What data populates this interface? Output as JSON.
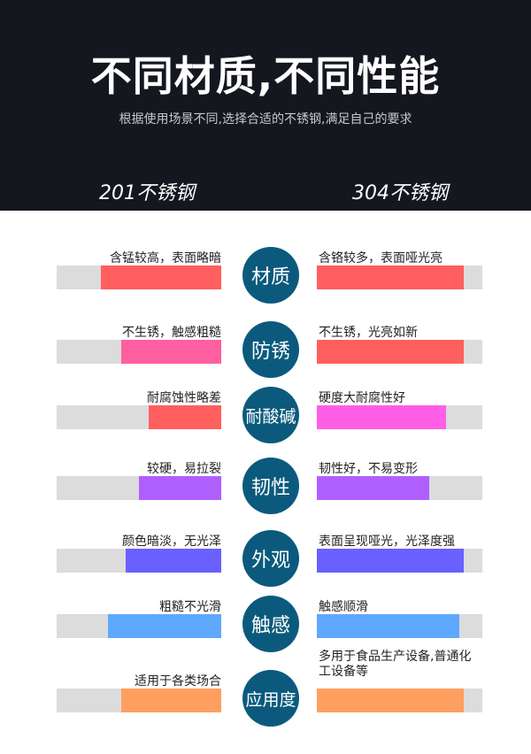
{
  "header": {
    "title": "不同材质,不同性能",
    "subtitle": "根据使用场景不同,选择合适的不锈钢,满足自己的要求",
    "left_column": "201不锈钢",
    "right_column": "304不锈钢"
  },
  "accent_circle_color": "#0b5a7d",
  "rows": [
    {
      "name": "材质",
      "left_text": "含锰较高，表面略暗",
      "right_text": "含铬较多，表面哑光亮",
      "left_level": 0.73,
      "right_level": 0.89,
      "left_color": "#ff5f5f",
      "right_color": "#ff5f5f"
    },
    {
      "name": "防锈",
      "left_text": "不生锈，触感粗糙",
      "right_text": "不生锈，光亮如新",
      "left_level": 0.61,
      "right_level": 0.89,
      "left_color": "#ff5fa0",
      "right_color": "#ff5f5f"
    },
    {
      "name": "耐酸碱",
      "left_text": "耐腐蚀性略差",
      "right_text": "硬度大耐腐性好",
      "left_level": 0.44,
      "right_level": 0.78,
      "left_color": "#ff5f5f",
      "right_color": "#ff5fe6"
    },
    {
      "name": "韧性",
      "left_text": "较硬，易拉裂",
      "right_text": "韧性好，不易变形",
      "left_level": 0.5,
      "right_level": 0.68,
      "left_color": "#b05fff",
      "right_color": "#b05fff"
    },
    {
      "name": "外观",
      "left_text": "颜色暗淡，无光泽",
      "right_text": "表面呈现哑光，光泽度强",
      "left_level": 0.58,
      "right_level": 0.89,
      "left_color": "#6a5fff",
      "right_color": "#6a5fff"
    },
    {
      "name": "触感",
      "left_text": "粗糙不光滑",
      "right_text": "触感顺滑",
      "left_level": 0.69,
      "right_level": 0.86,
      "left_color": "#5fa8ff",
      "right_color": "#5fa8ff"
    },
    {
      "name": "应用度",
      "left_text": "适用于各类场合",
      "right_text": "多用于食品生产设备,普通化工设备等",
      "left_level": 0.61,
      "right_level": 0.89,
      "left_color": "#ff9f5f",
      "right_color": "#ff9f5f"
    }
  ]
}
